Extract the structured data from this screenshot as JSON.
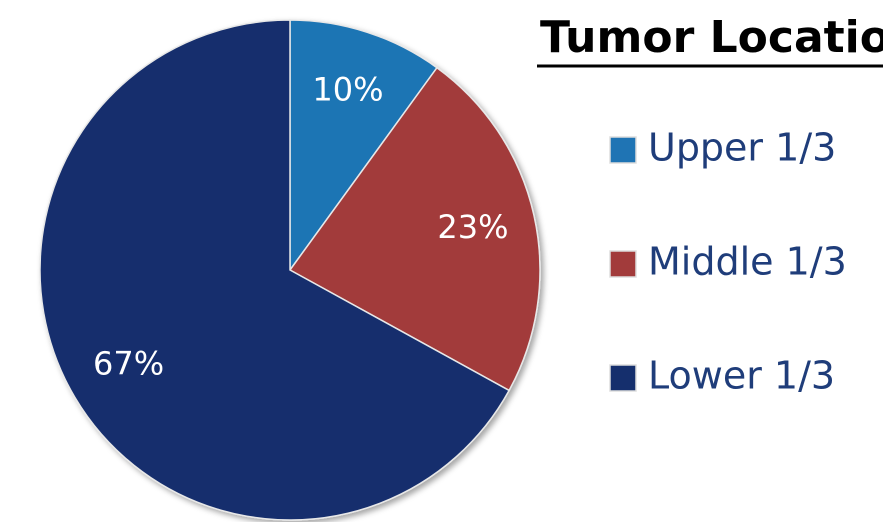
{
  "chart_data": {
    "type": "pie",
    "title": "Tumor Location",
    "categories": [
      "Upper 1/3",
      "Middle 1/3",
      "Lower 1/3"
    ],
    "values": [
      10,
      23,
      67
    ],
    "value_labels": [
      "10%",
      "23%",
      "67%"
    ],
    "colors": [
      "#1f74b4",
      "#a23b3b",
      "#152f6d"
    ],
    "legend": "right"
  }
}
